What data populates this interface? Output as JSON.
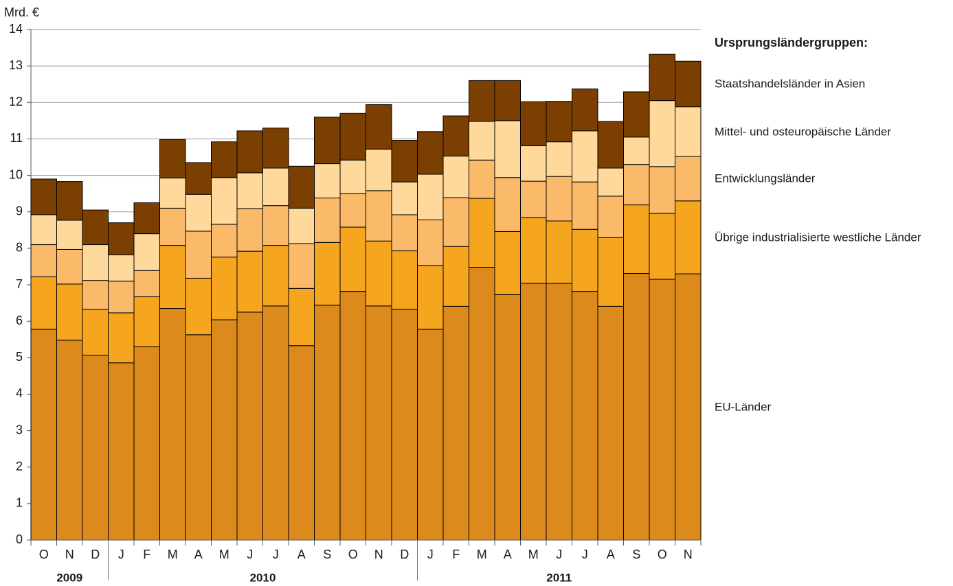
{
  "chart_data": {
    "type": "stacked_bar",
    "y_label": "Mrd. €",
    "legend_title": "Ursprungsländergruppen:",
    "categories": [
      "O",
      "N",
      "D",
      "J",
      "F",
      "M",
      "A",
      "M",
      "J",
      "J",
      "A",
      "S",
      "O",
      "N",
      "D",
      "J",
      "F",
      "M",
      "A",
      "M",
      "J",
      "J",
      "A",
      "S",
      "O",
      "N"
    ],
    "year_groups": [
      {
        "label": "2009",
        "count": 3
      },
      {
        "label": "2010",
        "count": 12
      },
      {
        "label": "2011",
        "count": 11
      }
    ],
    "ylim": [
      0,
      14
    ],
    "yticks": [
      0,
      1,
      2,
      3,
      4,
      5,
      6,
      7,
      8,
      9,
      10,
      11,
      12,
      13,
      14
    ],
    "grid": true,
    "series": [
      {
        "name": "EU-Länder",
        "color": "#db8a1b",
        "values": [
          5.78,
          5.48,
          5.07,
          4.86,
          5.3,
          6.35,
          5.63,
          6.04,
          6.25,
          6.42,
          5.33,
          6.44,
          6.82,
          6.42,
          6.33,
          5.78,
          6.41,
          7.48,
          6.73,
          7.04,
          7.04,
          6.82,
          6.41,
          7.31,
          7.15,
          7.3
        ]
      },
      {
        "name": "Übrige industrialisierte westliche Länder",
        "color": "#f6a51f",
        "values": [
          1.44,
          1.54,
          1.26,
          1.37,
          1.37,
          1.73,
          1.55,
          1.72,
          1.67,
          1.66,
          1.57,
          1.72,
          1.76,
          1.78,
          1.6,
          1.75,
          1.64,
          1.89,
          1.73,
          1.8,
          1.71,
          1.7,
          1.88,
          1.88,
          1.81,
          2.0
        ]
      },
      {
        "name": "Entwicklungsländer",
        "color": "#fbba69",
        "values": [
          0.88,
          0.95,
          0.79,
          0.87,
          0.72,
          1.02,
          1.29,
          0.9,
          1.17,
          1.09,
          1.23,
          1.22,
          0.92,
          1.38,
          0.99,
          1.25,
          1.34,
          1.05,
          1.48,
          1.0,
          1.22,
          1.3,
          1.14,
          1.11,
          1.28,
          1.22
        ]
      },
      {
        "name": "Mittel- und osteuropäische Länder",
        "color": "#fed99b",
        "values": [
          0.82,
          0.8,
          0.98,
          0.72,
          1.01,
          0.83,
          1.01,
          1.28,
          0.98,
          1.03,
          0.97,
          0.94,
          0.92,
          1.14,
          0.9,
          1.25,
          1.14,
          1.06,
          1.56,
          0.97,
          0.95,
          1.4,
          0.77,
          0.75,
          1.81,
          1.36
        ]
      },
      {
        "name": "Staatshandelsländer in Asien",
        "color": "#7c3f02",
        "values": [
          0.98,
          1.06,
          0.95,
          0.88,
          0.85,
          1.05,
          0.87,
          0.98,
          1.15,
          1.1,
          1.15,
          1.28,
          1.28,
          1.22,
          1.14,
          1.17,
          1.1,
          1.12,
          1.1,
          1.21,
          1.11,
          1.15,
          1.28,
          1.24,
          1.27,
          1.25
        ]
      }
    ]
  }
}
